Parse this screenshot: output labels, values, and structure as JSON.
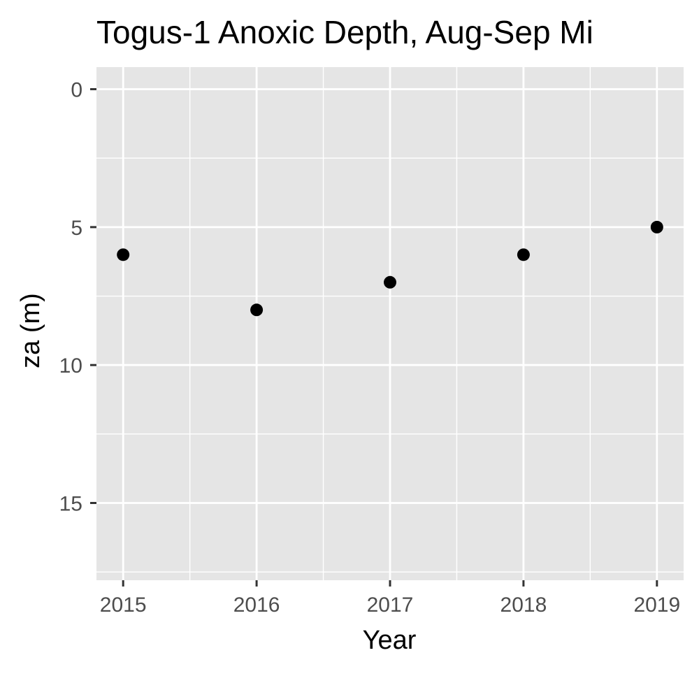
{
  "chart_data": {
    "type": "scatter",
    "title": "Togus-1 Anoxic Depth, Aug-Sep Mi",
    "xlabel": "Year",
    "ylabel": "za (m)",
    "x_ticks": [
      "2015",
      "2016",
      "2017",
      "2018",
      "2019"
    ],
    "y_ticks": [
      "0",
      "5",
      "10",
      "15"
    ],
    "y_reversed": true,
    "xlim": [
      2014.8,
      2019.2
    ],
    "ylim": [
      -0.8,
      17.8
    ],
    "grid": true,
    "legend": "none",
    "colors": {
      "panel": "#e5e5e5",
      "grid": "#ffffff",
      "point": "#000000",
      "tick": "#333333"
    },
    "points": [
      {
        "x": 2015,
        "y": 6
      },
      {
        "x": 2016,
        "y": 8
      },
      {
        "x": 2017,
        "y": 7
      },
      {
        "x": 2018,
        "y": 6
      },
      {
        "x": 2019,
        "y": 5
      }
    ]
  }
}
